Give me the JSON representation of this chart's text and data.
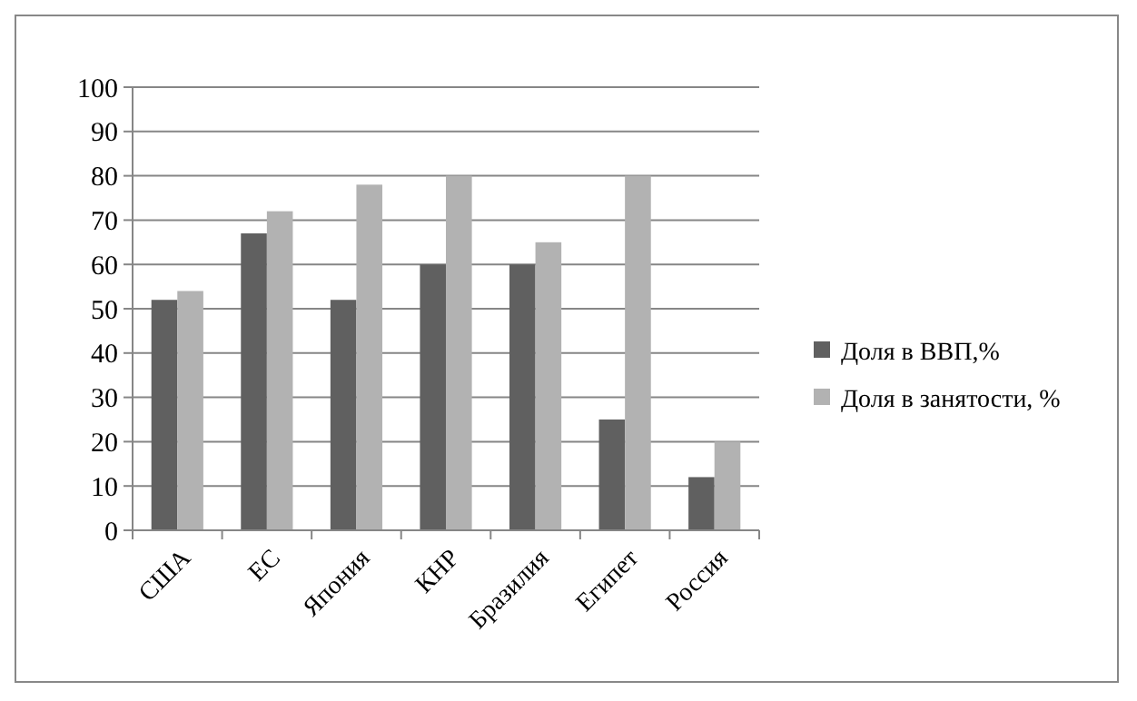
{
  "chart_data": {
    "type": "bar",
    "categories": [
      "США",
      "ЕС",
      "Япония",
      "КНР",
      "Бразилия",
      "Египет",
      "Россия"
    ],
    "series": [
      {
        "name": "Доля в ВВП,%",
        "color": "#606060",
        "values": [
          52,
          67,
          52,
          60,
          60,
          25,
          12
        ]
      },
      {
        "name": "Доля в занятости, %",
        "color": "#b2b2b2",
        "values": [
          54,
          72,
          78,
          80,
          65,
          80,
          20
        ]
      }
    ],
    "ylim": [
      0,
      100
    ],
    "yticks": [
      0,
      10,
      20,
      30,
      40,
      50,
      60,
      70,
      80,
      90,
      100
    ],
    "grid": "y",
    "legend": "right"
  }
}
